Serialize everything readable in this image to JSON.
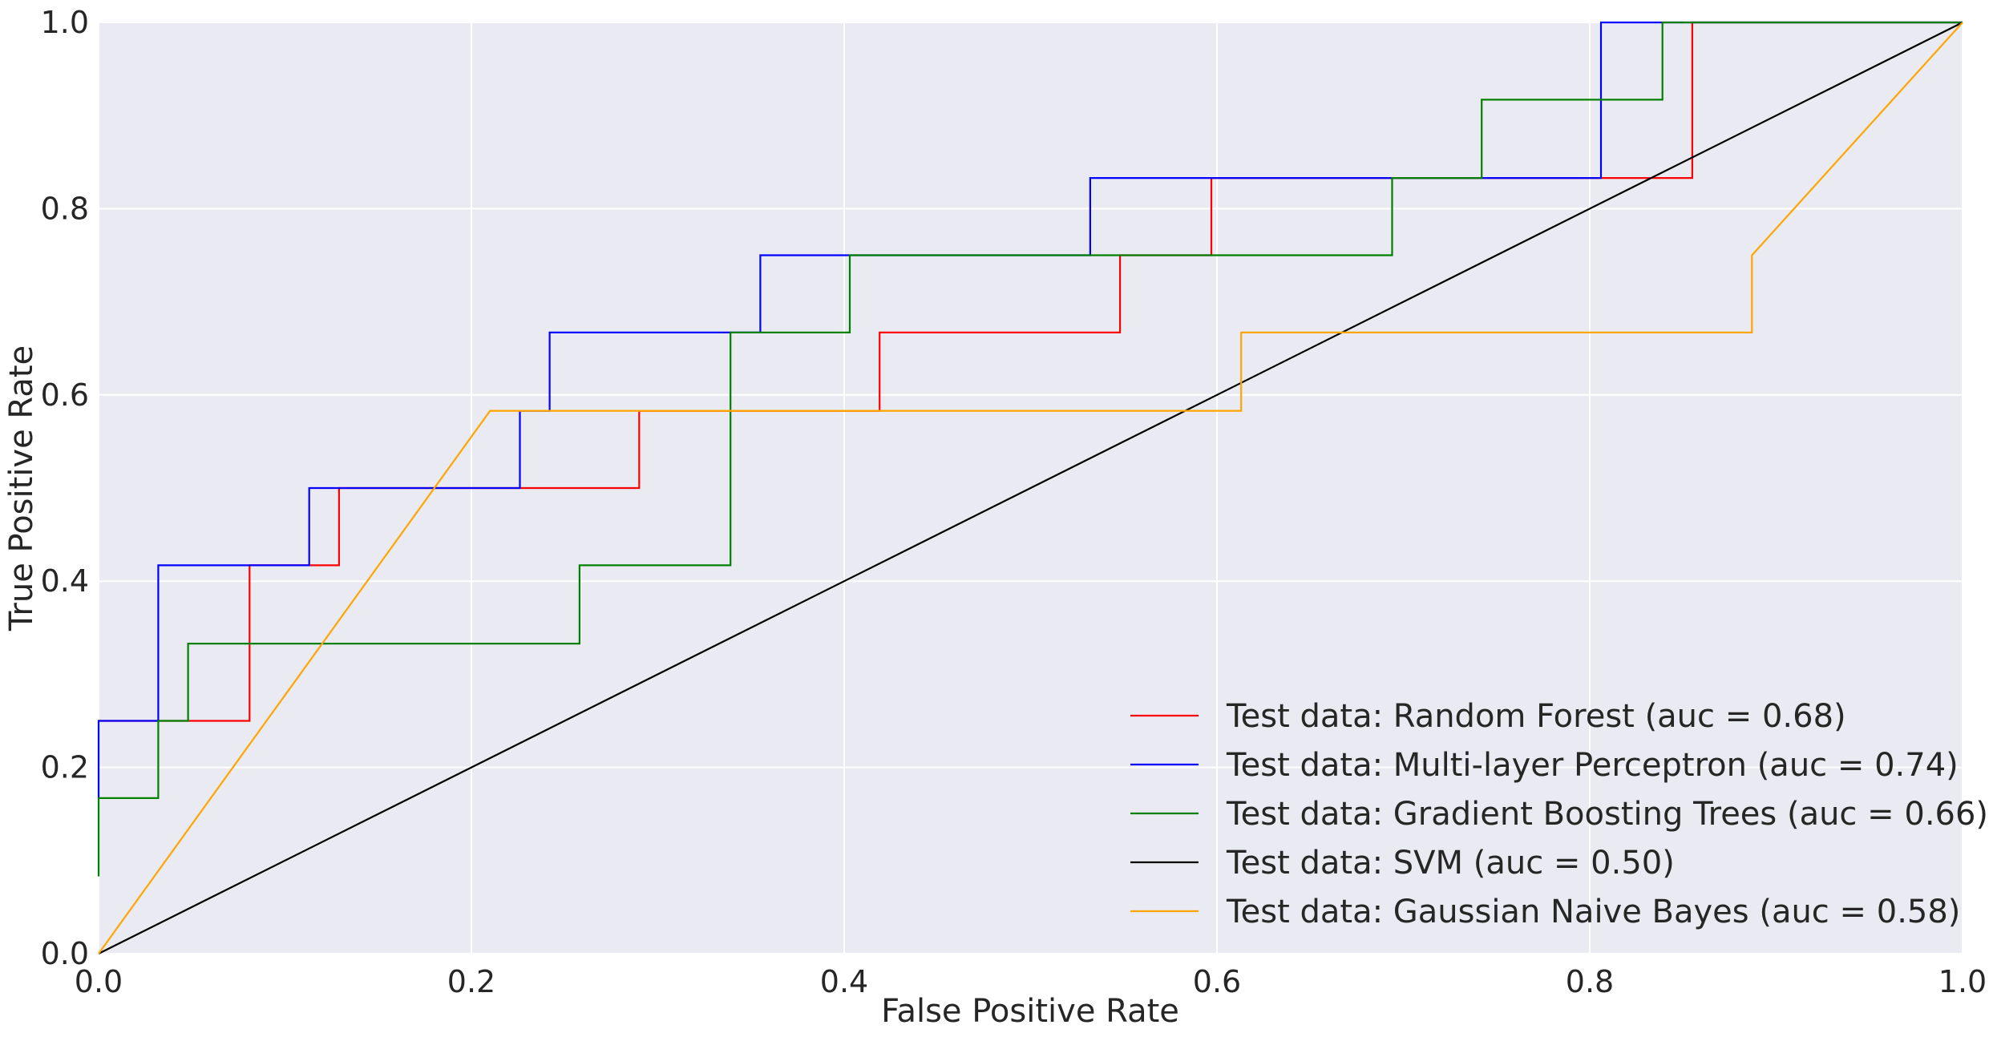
{
  "chart_data": {
    "type": "line",
    "title": "",
    "xlabel": "False Positive Rate",
    "ylabel": "True Positive Rate",
    "xlim": [
      0.0,
      1.0
    ],
    "ylim": [
      0.0,
      1.0
    ],
    "xticks": [
      "0.0",
      "0.2",
      "0.4",
      "0.6",
      "0.8",
      "1.0"
    ],
    "yticks": [
      "0.0",
      "0.2",
      "0.4",
      "0.6",
      "0.8",
      "1.0"
    ],
    "grid": true,
    "legend_position": "lower-right",
    "series": [
      {
        "name": "Test data: Random Forest (auc = 0.68)",
        "color": "#ff0000",
        "points": [
          [
            0,
            0.25
          ],
          [
            0.081,
            0.25
          ],
          [
            0.081,
            0.417
          ],
          [
            0.129,
            0.417
          ],
          [
            0.129,
            0.5
          ],
          [
            0.29,
            0.5
          ],
          [
            0.29,
            0.583
          ],
          [
            0.419,
            0.583
          ],
          [
            0.419,
            0.667
          ],
          [
            0.548,
            0.667
          ],
          [
            0.548,
            0.75
          ],
          [
            0.597,
            0.75
          ],
          [
            0.597,
            0.833
          ],
          [
            0.855,
            0.833
          ],
          [
            0.855,
            1.0
          ],
          [
            1.0,
            1.0
          ]
        ]
      },
      {
        "name": "Test data: Multi-layer Perceptron (auc = 0.74)",
        "color": "#0000ff",
        "points": [
          [
            0,
            0.167
          ],
          [
            0,
            0.25
          ],
          [
            0.032,
            0.25
          ],
          [
            0.032,
            0.417
          ],
          [
            0.113,
            0.417
          ],
          [
            0.113,
            0.5
          ],
          [
            0.226,
            0.5
          ],
          [
            0.226,
            0.583
          ],
          [
            0.242,
            0.583
          ],
          [
            0.242,
            0.667
          ],
          [
            0.355,
            0.667
          ],
          [
            0.355,
            0.75
          ],
          [
            0.532,
            0.75
          ],
          [
            0.532,
            0.833
          ],
          [
            0.806,
            0.833
          ],
          [
            0.806,
            1.0
          ],
          [
            1.0,
            1.0
          ]
        ]
      },
      {
        "name": "Test data: Gradient Boosting Trees (auc = 0.66)",
        "color": "#008000",
        "points": [
          [
            0,
            0.083
          ],
          [
            0,
            0.167
          ],
          [
            0.032,
            0.167
          ],
          [
            0.032,
            0.25
          ],
          [
            0.048,
            0.25
          ],
          [
            0.048,
            0.333
          ],
          [
            0.258,
            0.333
          ],
          [
            0.258,
            0.417
          ],
          [
            0.339,
            0.417
          ],
          [
            0.339,
            0.667
          ],
          [
            0.403,
            0.667
          ],
          [
            0.403,
            0.75
          ],
          [
            0.694,
            0.75
          ],
          [
            0.694,
            0.833
          ],
          [
            0.742,
            0.833
          ],
          [
            0.742,
            0.917
          ],
          [
            0.839,
            0.917
          ],
          [
            0.839,
            1.0
          ],
          [
            1.0,
            1.0
          ]
        ]
      },
      {
        "name": "Test data: SVM (auc = 0.50)",
        "color": "#000000",
        "points": [
          [
            0,
            0
          ],
          [
            1.0,
            1.0
          ]
        ]
      },
      {
        "name": "Test data: Gaussian Naive Bayes (auc = 0.58)",
        "color": "#ffa500",
        "points": [
          [
            0,
            0
          ],
          [
            0.21,
            0.583
          ],
          [
            0.613,
            0.583
          ],
          [
            0.613,
            0.667
          ],
          [
            0.887,
            0.667
          ],
          [
            0.887,
            0.75
          ],
          [
            1.0,
            1.0
          ]
        ]
      }
    ]
  }
}
